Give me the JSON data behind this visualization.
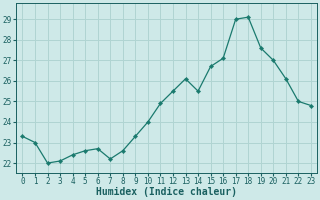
{
  "x": [
    0,
    1,
    2,
    3,
    4,
    5,
    6,
    7,
    8,
    9,
    10,
    11,
    12,
    13,
    14,
    15,
    16,
    17,
    18,
    19,
    20,
    21,
    22,
    23
  ],
  "y": [
    23.3,
    23.0,
    22.0,
    22.1,
    22.4,
    22.6,
    22.7,
    22.2,
    22.6,
    23.3,
    24.0,
    24.9,
    25.5,
    26.1,
    25.5,
    26.7,
    27.1,
    29.0,
    29.1,
    27.6,
    27.0,
    26.1,
    25.0,
    24.8
  ],
  "line_color": "#1a7a6e",
  "marker": "D",
  "marker_size": 2.2,
  "bg_color": "#cee9e8",
  "grid_color": "#b0d4d2",
  "xlabel": "Humidex (Indice chaleur)",
  "ylim": [
    21.5,
    29.8
  ],
  "xlim": [
    -0.5,
    23.5
  ],
  "yticks": [
    22,
    23,
    24,
    25,
    26,
    27,
    28,
    29
  ],
  "xtick_labels": [
    "0",
    "1",
    "2",
    "3",
    "4",
    "5",
    "6",
    "7",
    "8",
    "9",
    "10",
    "11",
    "12",
    "13",
    "14",
    "15",
    "16",
    "17",
    "18",
    "19",
    "20",
    "21",
    "22",
    "23"
  ],
  "tick_fontsize": 5.5,
  "xlabel_fontsize": 7,
  "line_width": 0.9
}
